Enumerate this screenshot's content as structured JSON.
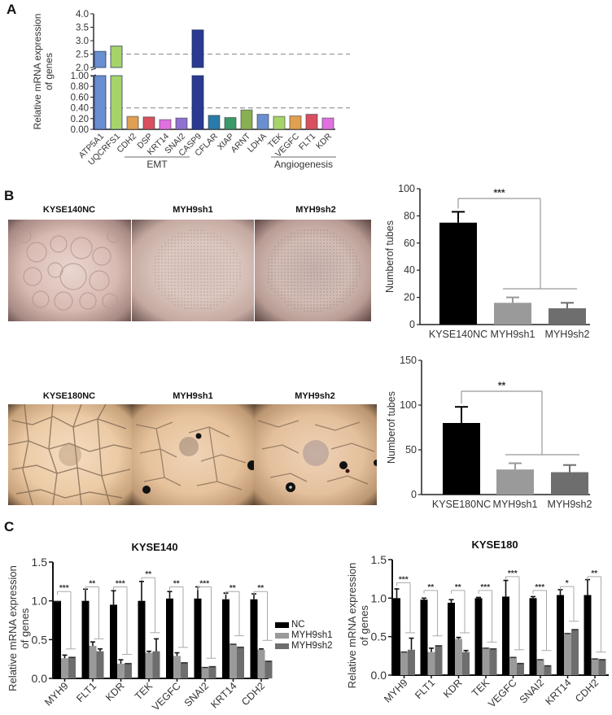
{
  "panels": {
    "A": {
      "letter": "A"
    },
    "B": {
      "letter": "B",
      "row1_titles": [
        "KYSE140NC",
        "MYH9sh1",
        "MYH9sh2"
      ],
      "row2_titles": [
        "KYSE180NC",
        "MYH9sh1",
        "MYH9sh2"
      ]
    },
    "C": {
      "letter": "C",
      "legend": [
        {
          "label": "NC",
          "color": "#000000"
        },
        {
          "label": "MYH9sh1",
          "color": "#9a9a9a"
        },
        {
          "label": "MYH9sh2",
          "color": "#6e6e6e"
        }
      ]
    }
  },
  "chart_data": [
    {
      "id": "A",
      "type": "bar",
      "title": "",
      "ylabel": "Relative mRNA expression of genes",
      "xlabel": "",
      "broken_axis": true,
      "ylim_lower": [
        0,
        1.0
      ],
      "ylim_upper": [
        2.0,
        4.0
      ],
      "yticks_lower": [
        "0.00",
        "0.20",
        "0.40",
        "0.60",
        "0.80",
        "1.00"
      ],
      "yticks_upper": [
        "2.0",
        "2.5",
        "3.0",
        "3.5",
        "4.0"
      ],
      "reference_lines": [
        0.4,
        2.5
      ],
      "categories": [
        "ATP5A1",
        "UQCRFS1",
        "CDH2",
        "DSP",
        "KRT14",
        "SNAI2",
        "CASP9",
        "CFLAR",
        "XIAP",
        "ARNT",
        "LDHA",
        "TEK",
        "VEGFC",
        "FLT1",
        "KDR"
      ],
      "values": [
        2.6,
        2.8,
        0.24,
        0.23,
        0.18,
        0.21,
        3.4,
        0.26,
        0.22,
        0.36,
        0.28,
        0.24,
        0.25,
        0.28,
        0.21
      ],
      "colors": [
        "#6a8fd0",
        "#a6d46a",
        "#e0a050",
        "#d85060",
        "#e070e0",
        "#9070d0",
        "#2a3a90",
        "#2a7aaa",
        "#3a9a6a",
        "#88b050",
        "#6a8fd0",
        "#a6d46a",
        "#e0a050",
        "#d85060",
        "#e070e0"
      ],
      "group_labels": [
        {
          "label": "EMT",
          "from": "CDH2",
          "to": "SNAI2"
        },
        {
          "label": "Angiogenesis",
          "from": "TEK",
          "to": "KDR"
        }
      ]
    },
    {
      "id": "B1",
      "type": "bar",
      "title": "",
      "ylabel": "Numberof tubes",
      "xlabel": "",
      "ylim": [
        0,
        100
      ],
      "yticks": [
        "0",
        "20",
        "40",
        "60",
        "80",
        "100"
      ],
      "categories": [
        "KYSE140NC",
        "MYH9sh1",
        "MYH9sh2"
      ],
      "values": [
        75,
        16,
        12
      ],
      "errors": [
        8,
        4,
        4
      ],
      "colors": [
        "#000000",
        "#9a9a9a",
        "#6e6e6e"
      ],
      "significance": "***"
    },
    {
      "id": "B2",
      "type": "bar",
      "title": "",
      "ylabel": "Numberof tubes",
      "xlabel": "",
      "ylim": [
        0,
        150
      ],
      "yticks": [
        "0",
        "50",
        "100",
        "150"
      ],
      "categories": [
        "KYSE180NC",
        "MYH9sh1",
        "MYH9sh2"
      ],
      "values": [
        80,
        28,
        25
      ],
      "errors": [
        18,
        7,
        8
      ],
      "colors": [
        "#000000",
        "#9a9a9a",
        "#6e6e6e"
      ],
      "significance": "**"
    },
    {
      "id": "C1",
      "type": "bar",
      "title": "KYSE140",
      "ylabel": "Relative mRNA expression of genes",
      "xlabel": "",
      "ylim": [
        0,
        1.5
      ],
      "yticks": [
        "0.0",
        "0.5",
        "1.0",
        "1.5"
      ],
      "categories": [
        "MYH9",
        "FLT1",
        "KDR",
        "TEK",
        "VEGFC",
        "SNAI2",
        "KRT14",
        "CDH2"
      ],
      "series": [
        {
          "name": "NC",
          "values": [
            1.0,
            1.0,
            0.95,
            1.0,
            1.03,
            1.03,
            1.02,
            1.02
          ],
          "errors": [
            0.0,
            0.15,
            0.18,
            0.25,
            0.09,
            0.15,
            0.08,
            0.07
          ]
        },
        {
          "name": "MYH9sh1",
          "values": [
            0.26,
            0.42,
            0.19,
            0.33,
            0.29,
            0.15,
            0.45,
            0.37
          ],
          "errors": [
            0.04,
            0.05,
            0.05,
            0.02,
            0.04,
            0.0,
            0.0,
            0.01
          ]
        },
        {
          "name": "MYH9sh2",
          "values": [
            0.28,
            0.35,
            0.2,
            0.35,
            0.21,
            0.16,
            0.41,
            0.23
          ],
          "errors": [
            0.0,
            0.03,
            0.0,
            0.16,
            0.0,
            0.0,
            0.0,
            0.0
          ]
        }
      ],
      "significance": [
        "***",
        "**",
        "***",
        "**",
        "**",
        "***",
        "**",
        "**"
      ],
      "sig_bracket_low": [
        0.38,
        0.51,
        0.31,
        0.59,
        0.4,
        0.26,
        0.55,
        0.49
      ],
      "sig_bracket_high": [
        1.12,
        1.18,
        1.18,
        1.3,
        1.18,
        1.18,
        1.12,
        1.12
      ]
    },
    {
      "id": "C2",
      "type": "bar",
      "title": "KYSE180",
      "ylabel": "Relative mRNA expression of genes",
      "xlabel": "",
      "ylim": [
        0,
        1.5
      ],
      "yticks": [
        "0.0",
        "0.5",
        "1.0",
        "1.5"
      ],
      "categories": [
        "MYH9",
        "FLT1",
        "KDR",
        "TEK",
        "VEGFC",
        "SNAI2",
        "KRT14",
        "CDH2"
      ],
      "series": [
        {
          "name": "NC",
          "values": [
            1.0,
            0.98,
            0.94,
            1.0,
            1.02,
            1.0,
            1.04,
            1.04
          ],
          "errors": [
            0.12,
            0.02,
            0.04,
            0.01,
            0.21,
            0.02,
            0.07,
            0.2
          ]
        },
        {
          "name": "MYH9sh1",
          "values": [
            0.31,
            0.3,
            0.47,
            0.36,
            0.24,
            0.21,
            0.55,
            0.22
          ],
          "errors": [
            0.0,
            0.05,
            0.02,
            0.0,
            0.0,
            0.0,
            0.0,
            0.0
          ]
        },
        {
          "name": "MYH9sh2",
          "values": [
            0.33,
            0.39,
            0.3,
            0.35,
            0.16,
            0.13,
            0.6,
            0.21
          ],
          "errors": [
            0.15,
            0.0,
            0.02,
            0.0,
            0.0,
            0.0,
            0.0,
            0.0
          ]
        }
      ],
      "significance": [
        "***",
        "**",
        "**",
        "***",
        "***",
        "***",
        "*",
        "**"
      ],
      "sig_bracket_low": [
        0.55,
        0.51,
        0.55,
        0.43,
        0.33,
        0.32,
        0.7,
        0.3
      ],
      "sig_bracket_high": [
        1.2,
        1.1,
        1.1,
        1.1,
        1.28,
        1.1,
        1.15,
        1.28
      ]
    }
  ]
}
